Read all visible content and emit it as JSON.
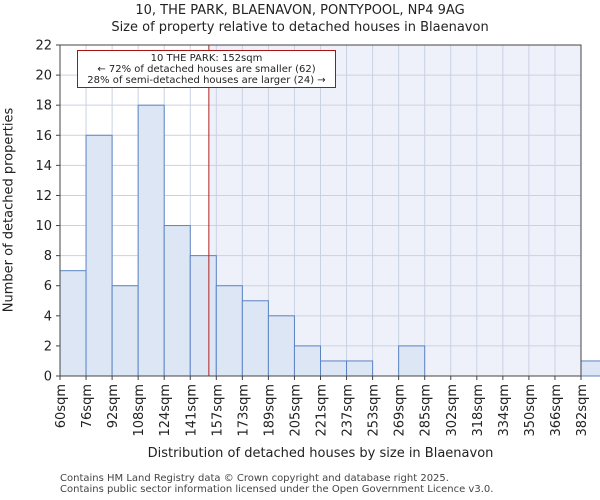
{
  "chart_data": {
    "type": "bar",
    "title": "10, THE PARK, BLAENAVON, PONTYPOOL, NP4 9AG",
    "subtitle": "Size of property relative to detached houses in Blaenavon",
    "xlabel": "Distribution of detached houses by size in Blaenavon",
    "ylabel": "Number of detached properties",
    "categories": [
      "60sqm",
      "76sqm",
      "92sqm",
      "108sqm",
      "124sqm",
      "141sqm",
      "157sqm",
      "173sqm",
      "189sqm",
      "205sqm",
      "221sqm",
      "237sqm",
      "253sqm",
      "269sqm",
      "285sqm",
      "302sqm",
      "318sqm",
      "334sqm",
      "350sqm",
      "366sqm",
      "382sqm"
    ],
    "values": [
      7,
      16,
      6,
      18,
      10,
      8,
      6,
      5,
      4,
      2,
      1,
      1,
      0,
      2,
      0,
      0,
      0,
      0,
      0,
      0,
      1
    ],
    "ylim": [
      0,
      22
    ],
    "yticks": [
      0,
      2,
      4,
      6,
      8,
      10,
      12,
      14,
      16,
      18,
      20,
      22
    ],
    "marker_value": 152,
    "annotation": {
      "line1": "10 THE PARK: 152sqm",
      "line2": "← 72% of detached houses are smaller (62)",
      "line3": "28% of semi-detached houses are larger (24) →"
    },
    "colors": {
      "bar_fill": "#dce6f4",
      "bar_edge": "#5b84c4",
      "marker": "#b22222",
      "shade": "#eef1fa"
    }
  },
  "footer": {
    "line1": "Contains HM Land Registry data © Crown copyright and database right 2025.",
    "line2": "Contains public sector information licensed under the Open Government Licence v3.0."
  }
}
